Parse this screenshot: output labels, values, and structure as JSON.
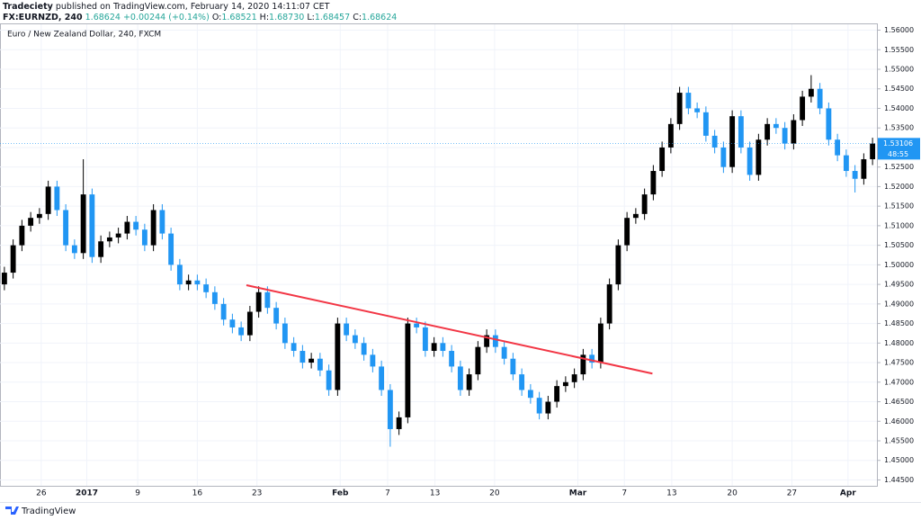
{
  "header": {
    "publisher": "Tradeciety",
    "published": "published on TradingView.com, February 14, 2020 14:11:07 CET",
    "symbol": "FX:EURNZD, 240",
    "quote": [
      "1.68624",
      "+0.00244 (+0.14%)"
    ],
    "ohlc": [
      [
        "O:",
        "1.68521"
      ],
      [
        "H:",
        "1.68730"
      ],
      [
        "L:",
        "1.68457"
      ],
      [
        "C:",
        "1.68624"
      ]
    ]
  },
  "footer": {
    "brand": "TradingView"
  },
  "chart_data": {
    "type": "candlestick",
    "title": "Euro / New Zealand Dollar, 240, FXCM",
    "up_color": "#000000",
    "down_color": "#2196f3",
    "grid": true,
    "open": [
      1.495,
      1.498,
      1.505,
      1.51,
      1.512,
      1.513,
      1.52,
      1.514,
      1.505,
      1.503,
      1.518,
      1.502,
      1.506,
      1.507,
      1.508,
      1.511,
      1.509,
      1.505,
      1.514,
      1.508,
      1.5,
      1.495,
      1.496,
      1.495,
      1.493,
      1.49,
      1.486,
      1.484,
      1.482,
      1.488,
      1.493,
      1.489,
      1.485,
      1.48,
      1.478,
      1.475,
      1.476,
      1.473,
      1.468,
      1.485,
      1.482,
      1.48,
      1.477,
      1.474,
      1.468,
      1.458,
      1.461,
      1.485,
      1.484,
      1.478,
      1.48,
      1.478,
      1.474,
      1.468,
      1.472,
      1.479,
      1.482,
      1.479,
      1.476,
      1.472,
      1.468,
      1.466,
      1.462,
      1.465,
      1.469,
      1.47,
      1.472,
      1.477,
      1.475,
      1.485,
      1.495,
      1.505,
      1.512,
      1.513,
      1.518,
      1.524,
      1.53,
      1.536,
      1.544,
      1.54,
      1.539,
      1.533,
      1.53,
      1.525,
      1.538,
      1.53,
      1.523,
      1.532,
      1.536,
      1.535,
      1.531,
      1.537,
      1.543,
      1.545,
      1.54,
      1.532,
      1.528,
      1.524,
      1.522,
      1.527
    ],
    "high": [
      1.4995,
      1.5065,
      1.5115,
      1.5135,
      1.5145,
      1.5215,
      1.5215,
      1.5155,
      1.5065,
      1.527,
      1.5195,
      1.5075,
      1.5085,
      1.5095,
      1.5125,
      1.5125,
      1.5105,
      1.5155,
      1.5155,
      1.5095,
      1.5015,
      1.4975,
      1.4975,
      1.4965,
      1.4945,
      1.4915,
      1.4875,
      1.4855,
      1.4895,
      1.4945,
      1.4945,
      1.4905,
      1.4865,
      1.4815,
      1.4795,
      1.4775,
      1.4775,
      1.4745,
      1.4865,
      1.4865,
      1.4835,
      1.4815,
      1.4785,
      1.4755,
      1.4695,
      1.4625,
      1.4865,
      1.4865,
      1.4855,
      1.4815,
      1.4815,
      1.4795,
      1.4755,
      1.4735,
      1.4805,
      1.4835,
      1.4835,
      1.4805,
      1.4775,
      1.4735,
      1.4695,
      1.4675,
      1.4665,
      1.4705,
      1.4715,
      1.4735,
      1.4785,
      1.4785,
      1.4865,
      1.4965,
      1.5065,
      1.5135,
      1.5145,
      1.5195,
      1.5255,
      1.5315,
      1.5375,
      1.5455,
      1.5455,
      1.5415,
      1.5405,
      1.5345,
      1.5315,
      1.5395,
      1.5395,
      1.5315,
      1.5335,
      1.5375,
      1.5375,
      1.5365,
      1.5385,
      1.5445,
      1.5485,
      1.5465,
      1.5415,
      1.5335,
      1.5295,
      1.5255,
      1.5285,
      1.5325
    ],
    "low": [
      1.4935,
      1.4965,
      1.5035,
      1.5085,
      1.5105,
      1.5115,
      1.5125,
      1.5035,
      1.5015,
      1.5015,
      1.5005,
      1.5005,
      1.5045,
      1.5055,
      1.5065,
      1.5075,
      1.5035,
      1.5035,
      1.5065,
      1.4985,
      1.4935,
      1.4935,
      1.4935,
      1.4915,
      1.4885,
      1.4845,
      1.4825,
      1.4805,
      1.4805,
      1.4865,
      1.4875,
      1.4835,
      1.4785,
      1.4765,
      1.4735,
      1.4735,
      1.4715,
      1.4665,
      1.4665,
      1.4805,
      1.4785,
      1.4755,
      1.4725,
      1.4665,
      1.4535,
      1.4565,
      1.4595,
      1.4825,
      1.4765,
      1.4765,
      1.4765,
      1.4725,
      1.4665,
      1.4665,
      1.4705,
      1.4775,
      1.4775,
      1.4745,
      1.4705,
      1.4665,
      1.4645,
      1.4605,
      1.4605,
      1.4635,
      1.4675,
      1.4685,
      1.4705,
      1.4735,
      1.4735,
      1.4835,
      1.4935,
      1.5035,
      1.5105,
      1.5115,
      1.5165,
      1.5225,
      1.5285,
      1.5345,
      1.5385,
      1.5375,
      1.5315,
      1.5285,
      1.5235,
      1.5235,
      1.5285,
      1.5215,
      1.5215,
      1.5305,
      1.5335,
      1.5295,
      1.5295,
      1.5355,
      1.5415,
      1.5385,
      1.5305,
      1.5265,
      1.5225,
      1.5185,
      1.5205,
      1.5255
    ],
    "close": [
      1.498,
      1.505,
      1.51,
      1.512,
      1.513,
      1.52,
      1.514,
      1.505,
      1.503,
      1.518,
      1.502,
      1.506,
      1.507,
      1.508,
      1.511,
      1.509,
      1.505,
      1.514,
      1.508,
      1.5,
      1.495,
      1.496,
      1.495,
      1.493,
      1.49,
      1.486,
      1.484,
      1.482,
      1.488,
      1.493,
      1.489,
      1.485,
      1.48,
      1.478,
      1.475,
      1.476,
      1.473,
      1.468,
      1.485,
      1.482,
      1.48,
      1.477,
      1.474,
      1.468,
      1.458,
      1.461,
      1.485,
      1.484,
      1.478,
      1.48,
      1.478,
      1.474,
      1.468,
      1.472,
      1.479,
      1.482,
      1.479,
      1.476,
      1.472,
      1.468,
      1.466,
      1.462,
      1.465,
      1.469,
      1.47,
      1.472,
      1.477,
      1.475,
      1.485,
      1.495,
      1.505,
      1.512,
      1.513,
      1.518,
      1.524,
      1.53,
      1.536,
      1.544,
      1.54,
      1.539,
      1.533,
      1.53,
      1.525,
      1.538,
      1.53,
      1.523,
      1.532,
      1.536,
      1.535,
      1.531,
      1.537,
      1.543,
      1.545,
      1.54,
      1.532,
      1.528,
      1.524,
      1.522,
      1.527,
      1.531
    ],
    "xlim": [
      -0.5,
      99.5
    ],
    "xticks": [
      {
        "value": 4.2,
        "label": "26"
      },
      {
        "value": 9.4,
        "label": "2017"
      },
      {
        "value": 15.2,
        "label": "9"
      },
      {
        "value": 22,
        "label": "16"
      },
      {
        "value": 28.8,
        "label": "23"
      },
      {
        "value": 38.3,
        "label": "Feb"
      },
      {
        "value": 43.7,
        "label": "7"
      },
      {
        "value": 49.1,
        "label": "13"
      },
      {
        "value": 55.9,
        "label": "20"
      },
      {
        "value": 65.4,
        "label": "Mar"
      },
      {
        "value": 70.7,
        "label": "7"
      },
      {
        "value": 76.1,
        "label": "13"
      },
      {
        "value": 83,
        "label": "20"
      },
      {
        "value": 89.8,
        "label": "27"
      },
      {
        "value": 96.2,
        "label": "Apr"
      }
    ],
    "ylim": [
      1.4435,
      1.5615
    ],
    "yticks": [
      {
        "value": 1.445,
        "label": "1.44500"
      },
      {
        "value": 1.45,
        "label": "1.45000"
      },
      {
        "value": 1.455,
        "label": "1.45500"
      },
      {
        "value": 1.46,
        "label": "1.46000"
      },
      {
        "value": 1.465,
        "label": "1.46500"
      },
      {
        "value": 1.47,
        "label": "1.47000"
      },
      {
        "value": 1.475,
        "label": "1.47500"
      },
      {
        "value": 1.48,
        "label": "1.48000"
      },
      {
        "value": 1.485,
        "label": "1.48500"
      },
      {
        "value": 1.49,
        "label": "1.49000"
      },
      {
        "value": 1.495,
        "label": "1.49500"
      },
      {
        "value": 1.5,
        "label": "1.50000"
      },
      {
        "value": 1.505,
        "label": "1.50500"
      },
      {
        "value": 1.51,
        "label": "1.51000"
      },
      {
        "value": 1.515,
        "label": "1.51500"
      },
      {
        "value": 1.52,
        "label": "1.52000"
      },
      {
        "value": 1.525,
        "label": "1.52500"
      },
      {
        "value": 1.53,
        "label": "1.53000"
      },
      {
        "value": 1.535,
        "label": "1.53500"
      },
      {
        "value": 1.54,
        "label": "1.54000"
      },
      {
        "value": 1.545,
        "label": "1.54500"
      },
      {
        "value": 1.55,
        "label": "1.55000"
      },
      {
        "value": 1.555,
        "label": "1.55500"
      },
      {
        "value": 1.56,
        "label": "1.56000"
      }
    ],
    "last_price": {
      "value": 1.53106,
      "label": "1.53106"
    },
    "countdown": "48:55",
    "trendline": {
      "x": [
        27.6,
        73.9
      ],
      "y": [
        1.4948,
        1.4722
      ],
      "color": "#f23645"
    }
  }
}
